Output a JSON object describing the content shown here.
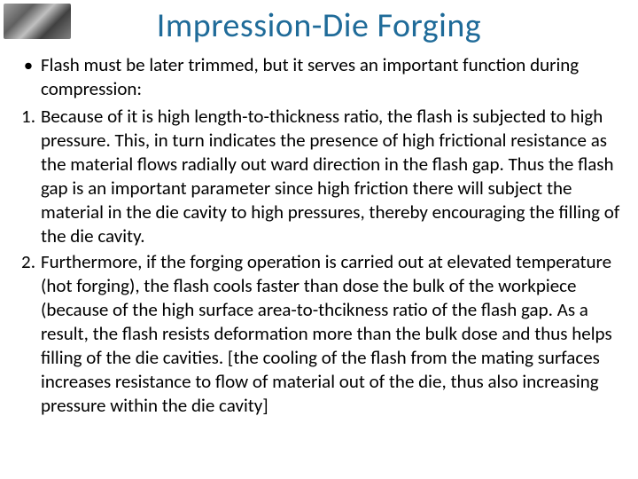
{
  "title": {
    "text": "Impression-Die Forging",
    "color": "#1f6b99",
    "fontsize": 38
  },
  "body": {
    "text_color": "#000000",
    "fontsize": 21,
    "bracket_color": "#000000"
  },
  "bullet": {
    "marker": "•",
    "text": "Flash must be later trimmed, but it serves an important function during compression:"
  },
  "numbered": [
    {
      "n": "1.",
      "text": "Because of it is high length-to-thickness ratio, the flash is subjected to high pressure. This, in turn indicates the presence of high frictional resistance as the material flows radially out ward direction in the flash gap. Thus the flash gap is an important parameter since high friction there will subject the material in the die cavity to high pressures, thereby encouraging the filling of the die cavity."
    },
    {
      "n": "2.",
      "text_main": "Furthermore, if the forging operation is carried out at elevated temperature (hot forging), the flash cools faster than dose the bulk of the workpiece (because of the high surface area-to-thcikness ratio of the flash gap. As a result, the flash resists deformation more than the bulk dose and thus helps filling of the die cavities. ",
      "text_bracket": "[the cooling of the flash from the mating surfaces increases resistance to flow of material out of the die, thus also increasing pressure within the die cavity]"
    }
  ]
}
